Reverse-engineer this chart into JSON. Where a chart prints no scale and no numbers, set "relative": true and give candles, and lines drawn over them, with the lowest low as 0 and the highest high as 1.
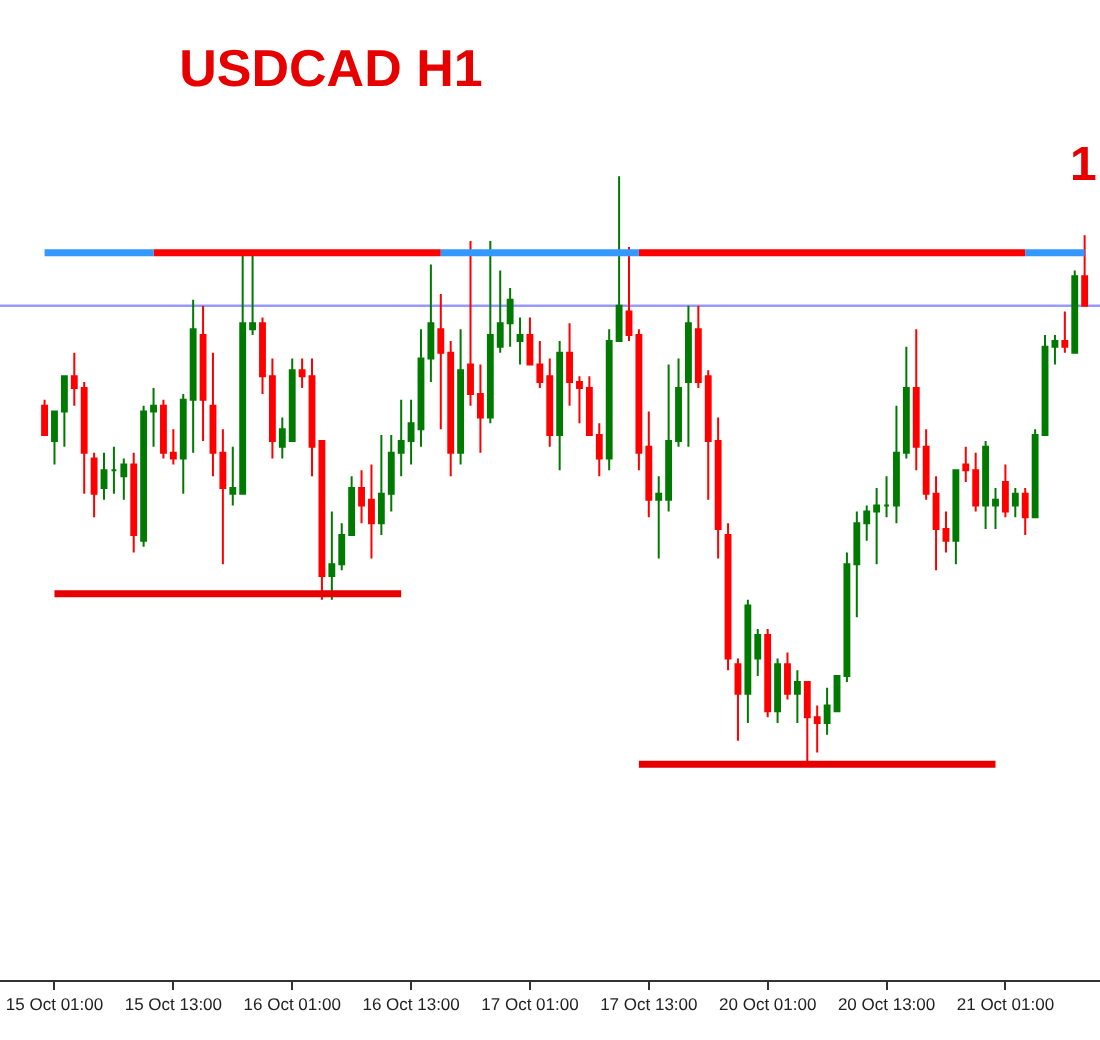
{
  "chart_data": {
    "type": "candlestick",
    "title": "USDCAD H1",
    "relative": true,
    "categories": [
      null,
      "15 Oct 01:00",
      null,
      null,
      null,
      null,
      null,
      null,
      null,
      null,
      null,
      null,
      null,
      "15 Oct 13:00",
      null,
      null,
      null,
      null,
      null,
      null,
      null,
      null,
      null,
      null,
      null,
      "16 Oct 01:00",
      null,
      null,
      null,
      null,
      null,
      null,
      null,
      null,
      null,
      null,
      null,
      "16 Oct 13:00",
      null,
      null,
      null,
      null,
      null,
      null,
      null,
      null,
      null,
      null,
      null,
      "17 Oct 01:00",
      null,
      null,
      null,
      null,
      null,
      null,
      null,
      null,
      null,
      null,
      null,
      "17 Oct 13:00",
      null,
      null,
      null,
      null,
      null,
      null,
      null,
      null,
      null,
      null,
      null,
      "20 Oct 01:00",
      null,
      null,
      null,
      null,
      null,
      null,
      null,
      null,
      null,
      null,
      null,
      "20 Oct 13:00",
      null,
      null,
      null,
      null,
      null,
      null,
      null,
      null,
      null,
      null,
      null,
      "21 Oct 01:00",
      null,
      null,
      null,
      null,
      null,
      null,
      null,
      null
    ],
    "ohlc": [
      [
        0.61,
        0.62,
        0.56,
        0.56
      ],
      [
        0.55,
        0.6,
        0.51,
        0.6
      ],
      [
        0.6,
        0.66,
        0.54,
        0.66
      ],
      [
        0.66,
        0.7,
        0.61,
        0.64
      ],
      [
        0.64,
        0.65,
        0.46,
        0.53
      ],
      [
        0.52,
        0.53,
        0.42,
        0.46
      ],
      [
        0.47,
        0.53,
        0.45,
        0.5
      ],
      [
        0.5,
        0.54,
        0.46,
        0.5
      ],
      [
        0.49,
        0.52,
        0.45,
        0.51
      ],
      [
        0.51,
        0.53,
        0.36,
        0.39
      ],
      [
        0.38,
        0.61,
        0.37,
        0.6
      ],
      [
        0.6,
        0.64,
        0.54,
        0.61
      ],
      [
        0.61,
        0.62,
        0.52,
        0.53
      ],
      [
        0.53,
        0.57,
        0.51,
        0.52
      ],
      [
        0.52,
        0.63,
        0.46,
        0.62
      ],
      [
        0.62,
        0.79,
        0.53,
        0.74
      ],
      [
        0.73,
        0.78,
        0.55,
        0.62
      ],
      [
        0.61,
        0.7,
        0.49,
        0.53
      ],
      [
        0.53,
        0.57,
        0.34,
        0.47
      ],
      [
        0.46,
        0.54,
        0.44,
        0.47
      ],
      [
        0.46,
        0.87,
        0.46,
        0.75
      ],
      [
        0.74,
        0.87,
        0.73,
        0.75
      ],
      [
        0.75,
        0.76,
        0.63,
        0.66
      ],
      [
        0.66,
        0.69,
        0.52,
        0.55
      ],
      [
        0.54,
        0.59,
        0.52,
        0.57
      ],
      [
        0.55,
        0.69,
        0.55,
        0.67
      ],
      [
        0.67,
        0.69,
        0.64,
        0.66
      ],
      [
        0.66,
        0.69,
        0.49,
        0.54
      ],
      [
        0.55,
        0.55,
        0.28,
        0.32
      ],
      [
        0.32,
        0.43,
        0.28,
        0.34
      ],
      [
        0.34,
        0.41,
        0.33,
        0.39
      ],
      [
        0.39,
        0.49,
        0.39,
        0.47
      ],
      [
        0.47,
        0.5,
        0.41,
        0.44
      ],
      [
        0.45,
        0.51,
        0.35,
        0.41
      ],
      [
        0.41,
        0.56,
        0.39,
        0.46
      ],
      [
        0.46,
        0.56,
        0.43,
        0.53
      ],
      [
        0.53,
        0.62,
        0.49,
        0.55
      ],
      [
        0.55,
        0.62,
        0.51,
        0.58
      ],
      [
        0.57,
        0.74,
        0.54,
        0.69
      ],
      [
        0.69,
        0.85,
        0.65,
        0.75
      ],
      [
        0.74,
        0.8,
        0.57,
        0.7
      ],
      [
        0.7,
        0.72,
        0.49,
        0.53
      ],
      [
        0.53,
        0.74,
        0.51,
        0.67
      ],
      [
        0.68,
        0.89,
        0.61,
        0.63
      ],
      [
        0.63,
        0.68,
        0.53,
        0.59
      ],
      [
        0.59,
        0.89,
        0.58,
        0.73
      ],
      [
        0.71,
        0.84,
        0.7,
        0.75
      ],
      [
        0.75,
        0.81,
        0.71,
        0.79
      ],
      [
        0.72,
        0.76,
        0.68,
        0.73
      ],
      [
        0.73,
        0.76,
        0.68,
        0.68
      ],
      [
        0.68,
        0.72,
        0.64,
        0.65
      ],
      [
        0.66,
        0.69,
        0.54,
        0.56
      ],
      [
        0.56,
        0.72,
        0.5,
        0.7
      ],
      [
        0.7,
        0.75,
        0.61,
        0.65
      ],
      [
        0.65,
        0.66,
        0.58,
        0.64
      ],
      [
        0.64,
        0.66,
        0.56,
        0.56
      ],
      [
        0.56,
        0.58,
        0.49,
        0.52
      ],
      [
        0.52,
        0.74,
        0.5,
        0.72
      ],
      [
        0.72,
        1,
        0.72,
        0.78
      ],
      [
        0.77,
        0.88,
        0.72,
        0.73
      ],
      [
        0.73,
        0.74,
        0.5,
        0.53
      ],
      [
        0.54,
        0.6,
        0.42,
        0.45
      ],
      [
        0.45,
        0.49,
        0.35,
        0.46
      ],
      [
        0.45,
        0.68,
        0.43,
        0.55
      ],
      [
        0.55,
        0.69,
        0.54,
        0.64
      ],
      [
        0.65,
        0.78,
        0.54,
        0.75
      ],
      [
        0.74,
        0.78,
        0.64,
        0.65
      ],
      [
        0.66,
        0.67,
        0.45,
        0.55
      ],
      [
        0.55,
        0.59,
        0.35,
        0.4
      ],
      [
        0.39,
        0.41,
        0.16,
        0.18
      ],
      [
        0.17,
        0.18,
        0.04,
        0.12
      ],
      [
        0.12,
        0.28,
        0.07,
        0.27
      ],
      [
        0.18,
        0.23,
        0.15,
        0.22
      ],
      [
        0.22,
        0.23,
        0.08,
        0.09
      ],
      [
        0.09,
        0.18,
        0.07,
        0.17
      ],
      [
        0.17,
        0.19,
        0.11,
        0.12
      ],
      [
        0.12,
        0.16,
        0.07,
        0.14
      ],
      [
        0.14,
        0.14,
        0,
        0.08
      ],
      [
        0.08,
        0.1,
        0.02,
        0.07
      ],
      [
        0.07,
        0.13,
        0.05,
        0.1
      ],
      [
        0.09,
        0.15,
        0.09,
        0.15
      ],
      [
        0.15,
        0.36,
        0.14,
        0.34
      ],
      [
        0.34,
        0.43,
        0.25,
        0.41
      ],
      [
        0.41,
        0.44,
        0.38,
        0.43
      ],
      [
        0.43,
        0.47,
        0.34,
        0.44
      ],
      [
        0.44,
        0.49,
        0.42,
        0.44
      ],
      [
        0.44,
        0.61,
        0.41,
        0.53
      ],
      [
        0.53,
        0.71,
        0.52,
        0.64
      ],
      [
        0.64,
        0.74,
        0.5,
        0.54
      ],
      [
        0.54,
        0.57,
        0.45,
        0.46
      ],
      [
        0.46,
        0.49,
        0.33,
        0.4
      ],
      [
        0.4,
        0.43,
        0.36,
        0.38
      ],
      [
        0.38,
        0.5,
        0.34,
        0.5
      ],
      [
        0.51,
        0.54,
        0.48,
        0.5
      ],
      [
        0.5,
        0.53,
        0.43,
        0.44
      ],
      [
        0.44,
        0.55,
        0.4,
        0.54
      ],
      [
        0.44,
        0.47,
        0.4,
        0.45
      ],
      [
        0.48,
        0.51,
        0.42,
        0.43
      ],
      [
        0.44,
        0.47,
        0.42,
        0.46
      ],
      [
        0.46,
        0.47,
        0.39,
        0.42
      ],
      [
        0.42,
        0.57,
        0.42,
        0.56
      ],
      [
        0.56,
        0.73,
        0.56,
        0.71
      ],
      [
        0.71,
        0.73,
        0.68,
        0.72
      ],
      [
        0.72,
        0.77,
        0.7,
        0.71
      ],
      [
        0.7,
        0.84,
        0.7,
        0.83
      ],
      [
        0.83,
        0.9,
        0.78,
        0.78
      ]
    ],
    "colors": [
      "#ff0000",
      "#007a00",
      "#007a00",
      "#ff0000",
      "#ff0000",
      "#ff0000",
      "#007a00",
      "#007a00",
      "#007a00",
      "#ff0000",
      "#007a00",
      "#007a00",
      "#ff0000",
      "#ff0000",
      "#007a00",
      "#007a00",
      "#ff0000",
      "#ff0000",
      "#ff0000",
      "#007a00",
      "#007a00",
      "#007a00",
      "#ff0000",
      "#ff0000",
      "#007a00",
      "#007a00",
      "#ff0000",
      "#ff0000",
      "#ff0000",
      "#007a00",
      "#007a00",
      "#007a00",
      "#ff0000",
      "#ff0000",
      "#007a00",
      "#007a00",
      "#007a00",
      "#007a00",
      "#007a00",
      "#007a00",
      "#ff0000",
      "#ff0000",
      "#007a00",
      "#ff0000",
      "#ff0000",
      "#007a00",
      "#007a00",
      "#007a00",
      "#007a00",
      "#ff0000",
      "#ff0000",
      "#ff0000",
      "#007a00",
      "#ff0000",
      "#ff0000",
      "#ff0000",
      "#ff0000",
      "#007a00",
      "#007a00",
      "#ff0000",
      "#ff0000",
      "#ff0000",
      "#007a00",
      "#007a00",
      "#007a00",
      "#007a00",
      "#ff0000",
      "#ff0000",
      "#ff0000",
      "#ff0000",
      "#ff0000",
      "#007a00",
      "#007a00",
      "#ff0000",
      "#007a00",
      "#ff0000",
      "#007a00",
      "#ff0000",
      "#ff0000",
      "#007a00",
      "#007a00",
      "#007a00",
      "#007a00",
      "#007a00",
      "#007a00",
      "#007a00",
      "#007a00",
      "#007a00",
      "#ff0000",
      "#ff0000",
      "#ff0000",
      "#ff0000",
      "#007a00",
      "#ff0000",
      "#ff0000",
      "#007a00",
      "#007a00",
      "#ff0000",
      "#007a00",
      "#ff0000",
      "#007a00",
      "#007a00",
      "#007a00",
      "#ff0000",
      "#007a00",
      "#ff0000"
    ],
    "series": [
      {
        "type": "line",
        "color": "#ff0000",
        "values": [
          null,
          null,
          null,
          null,
          null,
          null,
          null,
          null,
          null,
          null,
          null,
          0.87,
          0.87,
          0.87,
          0.87,
          0.87,
          0.87,
          0.87,
          0.87,
          0.87,
          0.87,
          0.87,
          0.87,
          0.87,
          0.87,
          0.87,
          0.87,
          0.87,
          0.87,
          0.87,
          0.87,
          0.87,
          0.87,
          0.87,
          0.87,
          0.87,
          0.87,
          0.87,
          0.87,
          0.87,
          0.87,
          null,
          null,
          null,
          null,
          null,
          null,
          null,
          null,
          null,
          null,
          null,
          null,
          null,
          null,
          null,
          null,
          null,
          null,
          null,
          0.87,
          0.87,
          0.87,
          0.87,
          0.87,
          0.87,
          0.87,
          0.87,
          0.87,
          0.87,
          0.87,
          0.87,
          0.87,
          0.87,
          0.87,
          0.87,
          0.87,
          0.87,
          0.87,
          0.87,
          0.87,
          0.87,
          0.87,
          0.87,
          0.87,
          0.87,
          0.87,
          0.87,
          0.87,
          0.87,
          0.87,
          0.87,
          0.87,
          0.87,
          0.87,
          0.87,
          0.87,
          0.87,
          0.87,
          0.87,
          null,
          null,
          null,
          null,
          null,
          null
        ]
      },
      {
        "type": "line",
        "color": "#3399ff",
        "values": [
          0.87,
          0.87,
          0.87,
          0.87,
          0.87,
          0.87,
          0.87,
          0.87,
          0.87,
          0.87,
          0.87,
          0.87,
          null,
          null,
          null,
          null,
          null,
          null,
          null,
          null,
          null,
          null,
          null,
          null,
          null,
          null,
          null,
          null,
          null,
          null,
          null,
          null,
          null,
          null,
          null,
          null,
          null,
          null,
          null,
          null,
          0.87,
          0.87,
          0.87,
          0.87,
          0.87,
          0.87,
          0.87,
          0.87,
          0.87,
          0.87,
          0.87,
          0.87,
          0.87,
          0.87,
          0.87,
          0.87,
          0.87,
          0.87,
          0.87,
          0.87,
          0.87,
          null,
          null,
          null,
          null,
          null,
          null,
          null,
          null,
          null,
          null,
          null,
          null,
          null,
          null,
          null,
          null,
          null,
          null,
          null,
          null,
          null,
          null,
          null,
          null,
          null,
          null,
          null,
          null,
          null,
          null,
          null,
          null,
          null,
          null,
          null,
          null,
          null,
          null,
          0.87,
          0.87,
          0.87,
          0.87,
          0.87,
          0.87,
          0.87
        ]
      },
      {
        "type": "line",
        "color": "#e60000",
        "values": [
          null,
          0.29,
          0.29,
          0.29,
          0.29,
          0.29,
          0.29,
          0.29,
          0.29,
          0.29,
          0.29,
          0.29,
          0.29,
          0.29,
          0.29,
          0.29,
          0.29,
          0.29,
          0.29,
          0.29,
          0.29,
          0.29,
          0.29,
          0.29,
          0.29,
          0.29,
          0.29,
          0.29,
          0.29,
          0.29,
          0.29,
          0.29,
          0.29,
          0.29,
          0.29,
          0.29,
          0.29,
          null,
          null,
          null,
          null,
          null,
          null,
          null,
          null,
          null,
          null,
          null,
          null,
          null,
          null,
          null,
          null,
          null,
          null,
          null,
          null,
          null,
          null,
          null,
          null,
          null,
          null,
          null,
          null,
          null,
          null,
          null,
          null,
          null,
          null,
          null,
          null,
          null,
          null,
          null,
          null,
          null,
          null,
          null,
          null,
          null,
          null,
          null,
          null,
          null,
          null,
          null,
          null,
          null,
          null,
          null,
          null,
          null,
          null,
          null,
          null,
          null,
          null,
          null,
          null,
          null,
          null,
          null,
          null,
          null
        ]
      },
      {
        "type": "line",
        "color": "#e60000",
        "values": [
          null,
          null,
          null,
          null,
          null,
          null,
          null,
          null,
          null,
          null,
          null,
          null,
          null,
          null,
          null,
          null,
          null,
          null,
          null,
          null,
          null,
          null,
          null,
          null,
          null,
          null,
          null,
          null,
          null,
          null,
          null,
          null,
          null,
          null,
          null,
          null,
          null,
          null,
          null,
          null,
          null,
          null,
          null,
          null,
          null,
          null,
          null,
          null,
          null,
          null,
          null,
          null,
          null,
          null,
          null,
          null,
          null,
          null,
          null,
          null,
          0,
          0,
          0,
          0,
          0,
          0,
          0,
          0,
          0,
          0,
          0,
          0,
          0,
          0,
          0,
          0,
          0,
          0,
          0,
          0,
          0,
          0,
          0,
          0,
          0,
          0,
          0,
          0,
          0,
          0,
          0,
          0,
          0,
          0,
          0,
          0,
          0,
          null,
          null,
          null,
          null,
          null,
          null,
          null,
          null,
          null
        ]
      }
    ],
    "ref_lines": [
      {
        "axis": "y",
        "value": 0.78,
        "color": "#9999ff"
      }
    ],
    "annotations": [
      "1"
    ]
  }
}
